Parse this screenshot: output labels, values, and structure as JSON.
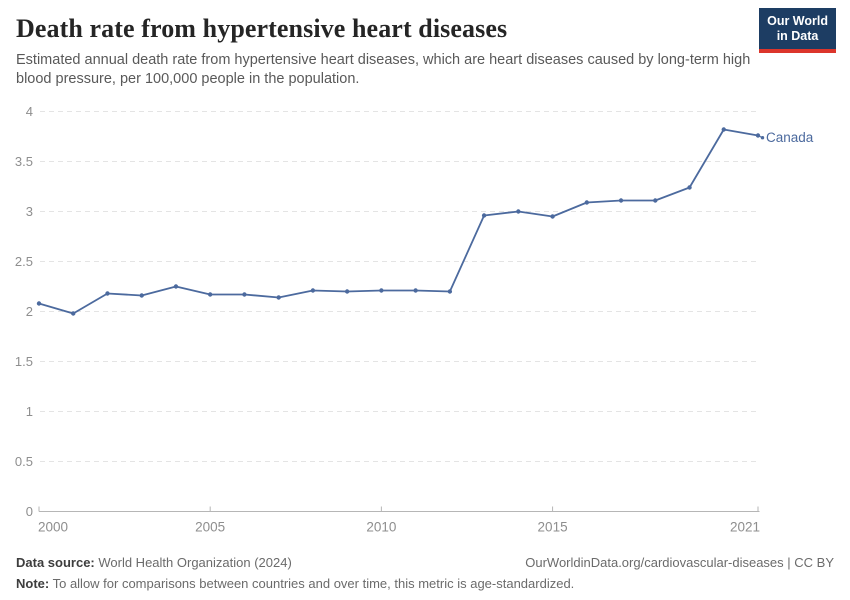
{
  "header": {
    "title": "Death rate from hypertensive heart diseases",
    "subtitle": "Estimated annual death rate from hypertensive heart diseases, which are heart diseases caused by long-term high blood pressure, per 100,000 people in the population.",
    "logo": {
      "line1": "Our World",
      "line2": "in Data"
    }
  },
  "chart_data": {
    "type": "line",
    "title": "Death rate from hypertensive heart diseases",
    "x": [
      2000,
      2001,
      2002,
      2003,
      2004,
      2005,
      2006,
      2007,
      2008,
      2009,
      2010,
      2011,
      2012,
      2013,
      2014,
      2015,
      2016,
      2017,
      2018,
      2019,
      2020,
      2021
    ],
    "series": [
      {
        "name": "Canada",
        "color": "#4c6a9e",
        "values": [
          2.08,
          1.98,
          2.18,
          2.16,
          2.25,
          2.17,
          2.17,
          2.14,
          2.21,
          2.2,
          2.21,
          2.21,
          2.2,
          2.96,
          3.0,
          2.95,
          3.09,
          3.11,
          3.11,
          3.24,
          3.82,
          3.76
        ]
      }
    ],
    "xlabel": "",
    "ylabel": "",
    "xlim": [
      2000,
      2021
    ],
    "ylim": [
      0,
      4
    ],
    "xticks": [
      2000,
      2005,
      2010,
      2015,
      2021
    ],
    "yticks": [
      0,
      0.5,
      1,
      1.5,
      2,
      2.5,
      3,
      3.5,
      4
    ],
    "grid": "horizontal-dashed",
    "legend_position": "end-of-line-label"
  },
  "colors": {
    "line": "#4c6a9e",
    "gridline": "#e4e4e4",
    "axis": "#b6b6b6",
    "tick_label": "#8e8e8e",
    "logo_bg": "#1d3d63",
    "logo_accent": "#dc352b"
  },
  "footer": {
    "datasource_label": "Data source:",
    "datasource_text": " World Health Organization (2024)",
    "link": "OurWorldinData.org/cardiovascular-diseases | CC BY",
    "note_label": "Note:",
    "note_text": " To allow for comparisons between countries and over time, this metric is age-standardized."
  }
}
